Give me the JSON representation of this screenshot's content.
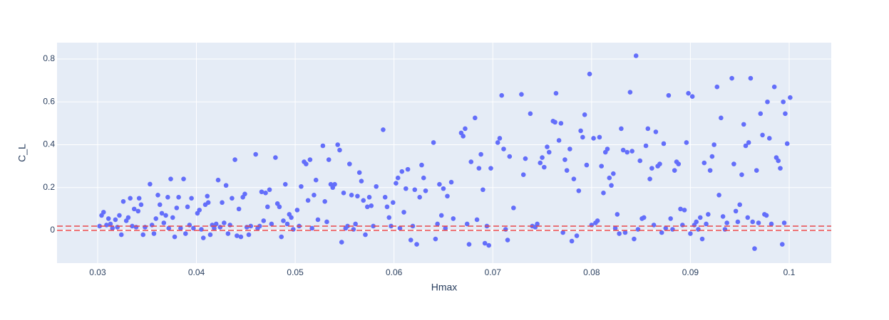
{
  "chart_data": {
    "type": "scatter",
    "x_label": "Hmax",
    "y_label": "C_L",
    "color": "#636efa",
    "xlim": [
      0.02589,
      0.10426
    ],
    "xticks": [
      0.03,
      0.04,
      0.05,
      0.06,
      0.07,
      0.08,
      0.09,
      0.1
    ],
    "ylim": [
      -0.1527,
      0.8763
    ],
    "yticks": [
      0,
      0.2,
      0.4,
      0.6,
      0.8
    ],
    "grid": true,
    "reference_lines": [
      0,
      0.02
    ],
    "reference_line_color": "#e8474a",
    "reference_line_dash": true,
    "x": [
      0.0302,
      0.0304,
      0.0306,
      0.0309,
      0.0311,
      0.0313,
      0.0315,
      0.0318,
      0.032,
      0.0322,
      0.0324,
      0.0326,
      0.0329,
      0.0331,
      0.0333,
      0.0335,
      0.0337,
      0.0339,
      0.0341,
      0.0342,
      0.0344,
      0.0346,
      0.0348,
      0.0353,
      0.0355,
      0.0357,
      0.0359,
      0.0361,
      0.0363,
      0.0365,
      0.0367,
      0.0369,
      0.0371,
      0.0372,
      0.0374,
      0.0376,
      0.0378,
      0.038,
      0.0382,
      0.0384,
      0.0387,
      0.0389,
      0.0391,
      0.0393,
      0.0395,
      0.0397,
      0.0401,
      0.0403,
      0.0405,
      0.0407,
      0.0409,
      0.0411,
      0.0412,
      0.0414,
      0.0416,
      0.0418,
      0.042,
      0.0422,
      0.0424,
      0.0426,
      0.0428,
      0.043,
      0.0432,
      0.0434,
      0.0436,
      0.0439,
      0.0441,
      0.0443,
      0.0445,
      0.0447,
      0.0449,
      0.0451,
      0.0453,
      0.0455,
      0.046,
      0.0462,
      0.0464,
      0.0466,
      0.0468,
      0.047,
      0.0472,
      0.0474,
      0.0476,
      0.048,
      0.0482,
      0.0484,
      0.0486,
      0.0488,
      0.049,
      0.0492,
      0.0494,
      0.0496,
      0.0498,
      0.0502,
      0.0504,
      0.0506,
      0.0509,
      0.0511,
      0.0513,
      0.0515,
      0.0517,
      0.0519,
      0.0521,
      0.0523,
      0.0528,
      0.053,
      0.0532,
      0.0534,
      0.0536,
      0.0538,
      0.054,
      0.0543,
      0.0545,
      0.0547,
      0.0549,
      0.0551,
      0.0553,
      0.0555,
      0.0557,
      0.0559,
      0.0561,
      0.0563,
      0.0565,
      0.0567,
      0.0569,
      0.0571,
      0.0573,
      0.0575,
      0.0577,
      0.0579,
      0.0582,
      0.0589,
      0.0591,
      0.0593,
      0.0595,
      0.0597,
      0.0599,
      0.0602,
      0.0604,
      0.0606,
      0.0608,
      0.061,
      0.0612,
      0.0614,
      0.0617,
      0.0619,
      0.0621,
      0.0623,
      0.0626,
      0.0628,
      0.063,
      0.0632,
      0.064,
      0.0642,
      0.0644,
      0.0646,
      0.0648,
      0.065,
      0.0652,
      0.0654,
      0.0658,
      0.066,
      0.0668,
      0.067,
      0.0672,
      0.0674,
      0.0676,
      0.0678,
      0.0682,
      0.0684,
      0.0686,
      0.0688,
      0.069,
      0.0692,
      0.0694,
      0.0696,
      0.0698,
      0.0705,
      0.0707,
      0.0709,
      0.0711,
      0.0713,
      0.0715,
      0.0717,
      0.0721,
      0.0729,
      0.0731,
      0.0733,
      0.0738,
      0.074,
      0.0743,
      0.0745,
      0.0748,
      0.075,
      0.0752,
      0.0755,
      0.0757,
      0.0761,
      0.0763,
      0.0764,
      0.0767,
      0.0769,
      0.0771,
      0.0773,
      0.0775,
      0.0778,
      0.078,
      0.0782,
      0.0785,
      0.0787,
      0.0789,
      0.0791,
      0.0793,
      0.0795,
      0.0798,
      0.08,
      0.0802,
      0.0804,
      0.0806,
      0.0808,
      0.081,
      0.0812,
      0.0814,
      0.0816,
      0.0818,
      0.082,
      0.0822,
      0.0824,
      0.0826,
      0.0828,
      0.083,
      0.0832,
      0.0834,
      0.0836,
      0.0839,
      0.0841,
      0.0843,
      0.0845,
      0.0847,
      0.0849,
      0.0851,
      0.0853,
      0.0855,
      0.0857,
      0.0859,
      0.0861,
      0.0863,
      0.0865,
      0.0867,
      0.0869,
      0.0871,
      0.0873,
      0.0875,
      0.0878,
      0.088,
      0.0882,
      0.0884,
      0.0886,
      0.0888,
      0.089,
      0.0892,
      0.0894,
      0.0896,
      0.0898,
      0.09,
      0.0902,
      0.0904,
      0.0906,
      0.0908,
      0.091,
      0.0912,
      0.0914,
      0.0916,
      0.0918,
      0.092,
      0.0922,
      0.0924,
      0.0927,
      0.0929,
      0.0931,
      0.0933,
      0.0935,
      0.0937,
      0.0942,
      0.0944,
      0.0946,
      0.0948,
      0.095,
      0.0952,
      0.0954,
      0.0956,
      0.0958,
      0.0961,
      0.0959,
      0.0963,
      0.0965,
      0.0967,
      0.0969,
      0.0971,
      0.0973,
      0.0975,
      0.0977,
      0.0978,
      0.098,
      0.0982,
      0.0985,
      0.0987,
      0.0989,
      0.0991,
      0.0993,
      0.0994,
      0.0995,
      0.0996,
      0.0998,
      0.1001
    ],
    "values": [
      0.02,
      0.07,
      0.085,
      0.025,
      0.055,
      0.03,
      0.01,
      0.05,
      0.015,
      0.07,
      -0.02,
      0.135,
      0.045,
      0.06,
      0.15,
      0.02,
      0.1,
      0.015,
      0.09,
      0.15,
      0.12,
      -0.02,
      0.015,
      0.216,
      0.025,
      -0.015,
      0.055,
      0.165,
      0.12,
      0.08,
      0.035,
      0.07,
      0.155,
      0.01,
      0.24,
      0.06,
      -0.03,
      0.105,
      0.155,
      0.01,
      0.24,
      -0.015,
      0.11,
      0.025,
      0.15,
      0.01,
      0.08,
      0.095,
      0.005,
      -0.035,
      0.12,
      0.16,
      0.13,
      -0.02,
      0.025,
      0.01,
      0.03,
      0.235,
      0.015,
      0.13,
      0.035,
      0.21,
      -0.015,
      0.025,
      0.15,
      0.33,
      -0.025,
      0.1,
      -0.03,
      0.155,
      0.17,
      0.015,
      -0.02,
      0.02,
      0.355,
      0.01,
      0.02,
      0.18,
      0.045,
      0.175,
      0.11,
      0.19,
      0.03,
      0.34,
      0.125,
      0.11,
      -0.03,
      0.045,
      0.215,
      0.03,
      0.075,
      0.06,
      0.005,
      0.095,
      0.02,
      0.205,
      0.32,
      0.31,
      0.14,
      0.33,
      0.01,
      0.165,
      0.235,
      0.05,
      0.395,
      0.135,
      0.04,
      0.33,
      0.215,
      0.2,
      0.215,
      0.4,
      0.375,
      -0.055,
      0.175,
      0.01,
      0.02,
      0.31,
      0.165,
      0.005,
      0.03,
      0.16,
      0.27,
      0.23,
      0.14,
      -0.02,
      0.11,
      0.155,
      0.115,
      0.02,
      0.205,
      0.47,
      0.155,
      0.11,
      0.06,
      0.02,
      0.13,
      0.22,
      0.245,
      0.01,
      0.275,
      0.085,
      0.195,
      0.285,
      -0.045,
      0.02,
      0.19,
      -0.065,
      0.155,
      0.305,
      0.245,
      0.185,
      0.41,
      -0.04,
      0.03,
      0.215,
      0.07,
      0.195,
      0.01,
      0.16,
      0.225,
      0.055,
      0.455,
      0.44,
      0.475,
      0.03,
      -0.065,
      0.32,
      0.525,
      0.05,
      0.29,
      0.355,
      0.19,
      -0.06,
      0.02,
      -0.07,
      0.29,
      0.41,
      0.43,
      0.63,
      0.38,
      0.005,
      -0.045,
      0.345,
      0.105,
      0.635,
      0.26,
      0.335,
      0.545,
      0.02,
      0.015,
      0.03,
      0.315,
      0.34,
      0.295,
      0.39,
      0.365,
      0.51,
      0.505,
      0.64,
      0.42,
      0.5,
      -0.01,
      0.33,
      0.28,
      0.38,
      -0.05,
      0.24,
      -0.025,
      0.185,
      0.465,
      0.435,
      0.54,
      0.305,
      0.73,
      0.025,
      0.43,
      0.035,
      0.045,
      0.435,
      0.3,
      0.175,
      0.365,
      0.38,
      0.245,
      0.21,
      0.265,
      0.01,
      0.075,
      -0.015,
      0.475,
      0.375,
      -0.01,
      0.365,
      0.645,
      0.37,
      -0.04,
      0.815,
      0.005,
      0.325,
      0.055,
      0.06,
      0.395,
      0.475,
      0.24,
      0.29,
      0.025,
      0.46,
      0.3,
      0.31,
      -0.01,
      0.405,
      0.01,
      0.63,
      0.055,
      0.005,
      0.28,
      0.32,
      0.31,
      0.1,
      0.025,
      0.095,
      0.41,
      0.64,
      -0.015,
      0.625,
      0.025,
      0.04,
      0.005,
      0.06,
      -0.04,
      0.315,
      0.03,
      0.075,
      0.28,
      0.345,
      0.4,
      0.67,
      0.165,
      0.525,
      0.065,
      0.005,
      0.035,
      0.71,
      0.31,
      0.09,
      0.04,
      0.12,
      0.26,
      0.495,
      0.395,
      0.06,
      0.71,
      0.41,
      0.04,
      -0.085,
      0.28,
      0.035,
      0.545,
      0.445,
      0.075,
      0.07,
      0.6,
      0.43,
      0.03,
      0.67,
      0.34,
      0.325,
      0.29,
      -0.065,
      0.6,
      0.035,
      0.545,
      0.405,
      0.62
    ]
  }
}
